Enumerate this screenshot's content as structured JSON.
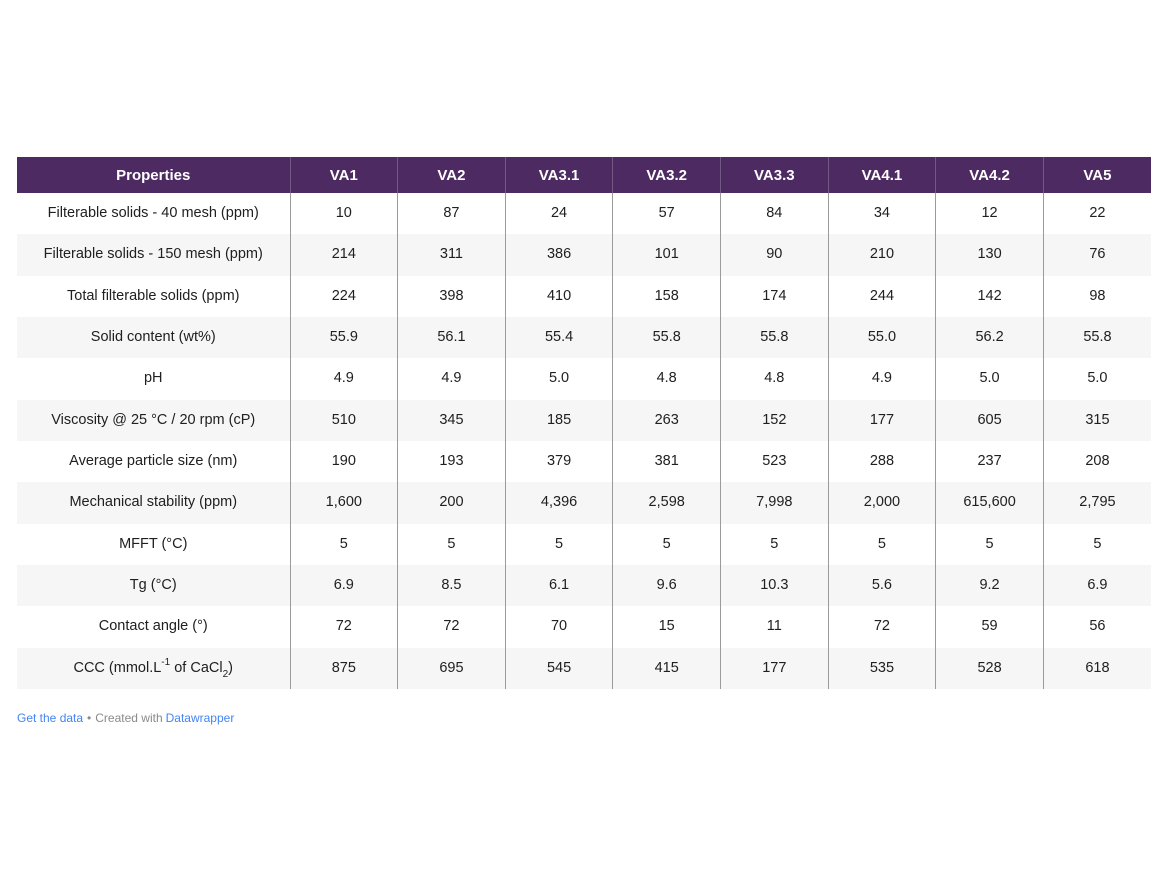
{
  "colors": {
    "header_bg": "#4e2a62",
    "header_divider": "rgba(255,255,255,0.22)",
    "header_text": "#ffffff",
    "row_stripe": "#f6f6f6",
    "column_border": "#9b9b9b",
    "body_text": "#202020",
    "link_blue": "#4285f4",
    "footer_text": "#8a8a8a"
  },
  "chart_data": {
    "type": "table",
    "columns": [
      "Properties",
      "VA1",
      "VA2",
      "VA3.1",
      "VA3.2",
      "VA3.3",
      "VA4.1",
      "VA4.2",
      "VA5"
    ],
    "rows": [
      {
        "label": "Filterable solids - 40 mesh (ppm)",
        "values": [
          "10",
          "87",
          "24",
          "57",
          "84",
          "34",
          "12",
          "22"
        ]
      },
      {
        "label": "Filterable solids - 150 mesh (ppm)",
        "values": [
          "214",
          "311",
          "386",
          "101",
          "90",
          "210",
          "130",
          "76"
        ]
      },
      {
        "label": "Total filterable solids (ppm)",
        "values": [
          "224",
          "398",
          "410",
          "158",
          "174",
          "244",
          "142",
          "98"
        ]
      },
      {
        "label": "Solid content (wt%)",
        "values": [
          "55.9",
          "56.1",
          "55.4",
          "55.8",
          "55.8",
          "55.0",
          "56.2",
          "55.8"
        ]
      },
      {
        "label": "pH",
        "values": [
          "4.9",
          "4.9",
          "5.0",
          "4.8",
          "4.8",
          "4.9",
          "5.0",
          "5.0"
        ]
      },
      {
        "label": "Viscosity @ 25 °C / 20 rpm (cP)",
        "values": [
          "510",
          "345",
          "185",
          "263",
          "152",
          "177",
          "605",
          "315"
        ]
      },
      {
        "label": "Average particle size (nm)",
        "values": [
          "190",
          "193",
          "379",
          "381",
          "523",
          "288",
          "237",
          "208"
        ]
      },
      {
        "label": "Mechanical stability (ppm)",
        "values": [
          "1,600",
          "200",
          "4,396",
          "2,598",
          "7,998",
          "2,000",
          "615,600",
          "2,795"
        ]
      },
      {
        "label": "MFFT (°C)",
        "values": [
          "5",
          "5",
          "5",
          "5",
          "5",
          "5",
          "5",
          "5"
        ]
      },
      {
        "label": "Tg (°C)",
        "values": [
          "6.9",
          "8.5",
          "6.1",
          "9.6",
          "10.3",
          "5.6",
          "9.2",
          "6.9"
        ]
      },
      {
        "label": "Contact angle (°)",
        "values": [
          "72",
          "72",
          "70",
          "15",
          "11",
          "72",
          "59",
          "56"
        ]
      },
      {
        "label": "CCC (mmol.L^{-1} of CaCl_{2})",
        "values": [
          "875",
          "695",
          "545",
          "415",
          "177",
          "535",
          "528",
          "618"
        ]
      }
    ],
    "title": "",
    "legend_position": "none",
    "grid": "column-separators-and-row-stripes"
  },
  "footer": {
    "get_data_label": "Get the data",
    "separator": "•",
    "created_with_label": "Created with",
    "datawrapper_label": "Datawrapper"
  }
}
